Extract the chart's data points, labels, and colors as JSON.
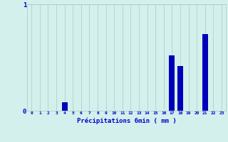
{
  "xlabel": "Précipitations 6min ( mm )",
  "values": [
    0,
    0,
    0,
    0,
    0.08,
    0,
    0,
    0,
    0,
    0,
    0,
    0,
    0,
    0,
    0,
    0,
    0,
    0.52,
    0.42,
    0,
    0,
    0.72,
    0,
    0
  ],
  "categories": [
    0,
    1,
    2,
    3,
    4,
    5,
    6,
    7,
    8,
    9,
    10,
    11,
    12,
    13,
    14,
    15,
    16,
    17,
    18,
    19,
    20,
    21,
    22,
    23
  ],
  "bar_color": "#0000bb",
  "bg_color": "#d4f0ec",
  "grid_color": "#adc8c4",
  "text_color": "#0000cc",
  "ylim": [
    0,
    1.0
  ],
  "yticks": [
    0,
    1
  ],
  "bar_width": 0.7,
  "figsize": [
    3.2,
    2.0
  ],
  "dpi": 100
}
